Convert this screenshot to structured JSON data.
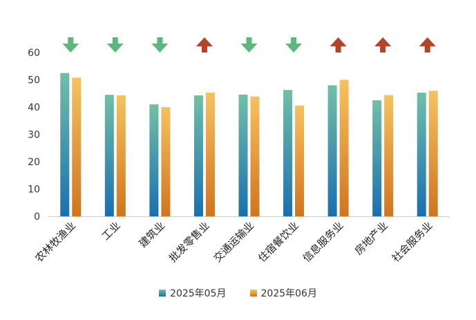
{
  "chart_data": {
    "type": "bar",
    "categories": [
      "农林牧渔业",
      "工业",
      "建筑业",
      "批发零售业",
      "交通运输业",
      "住宿餐饮业",
      "信息服务业",
      "房地产业",
      "社会服务业"
    ],
    "series": [
      {
        "name": "2025年05月",
        "values": [
          52.5,
          44.5,
          41,
          44.3,
          44.6,
          46.3,
          48,
          42.5,
          45.3
        ]
      },
      {
        "name": "2025年06月",
        "values": [
          50.8,
          44.3,
          40,
          45.3,
          43.9,
          40.6,
          50,
          44.4,
          46
        ]
      }
    ],
    "trend_arrows": [
      "down",
      "down",
      "down",
      "up",
      "down",
      "down",
      "up",
      "up",
      "up"
    ],
    "y_ticks": [
      "0",
      "10",
      "20",
      "30",
      "40",
      "50",
      "60"
    ],
    "ylim": [
      0,
      60
    ],
    "grid": false,
    "legend_position": "bottom-center",
    "colors": {
      "series1_top": "#72bfa8",
      "series1_bottom": "#1a6fb0",
      "series2_top": "#f6c25e",
      "series2_bottom": "#d1741f",
      "arrow_up": "#b5442b",
      "arrow_down": "#5bb77d",
      "axis": "#cccccc"
    }
  }
}
